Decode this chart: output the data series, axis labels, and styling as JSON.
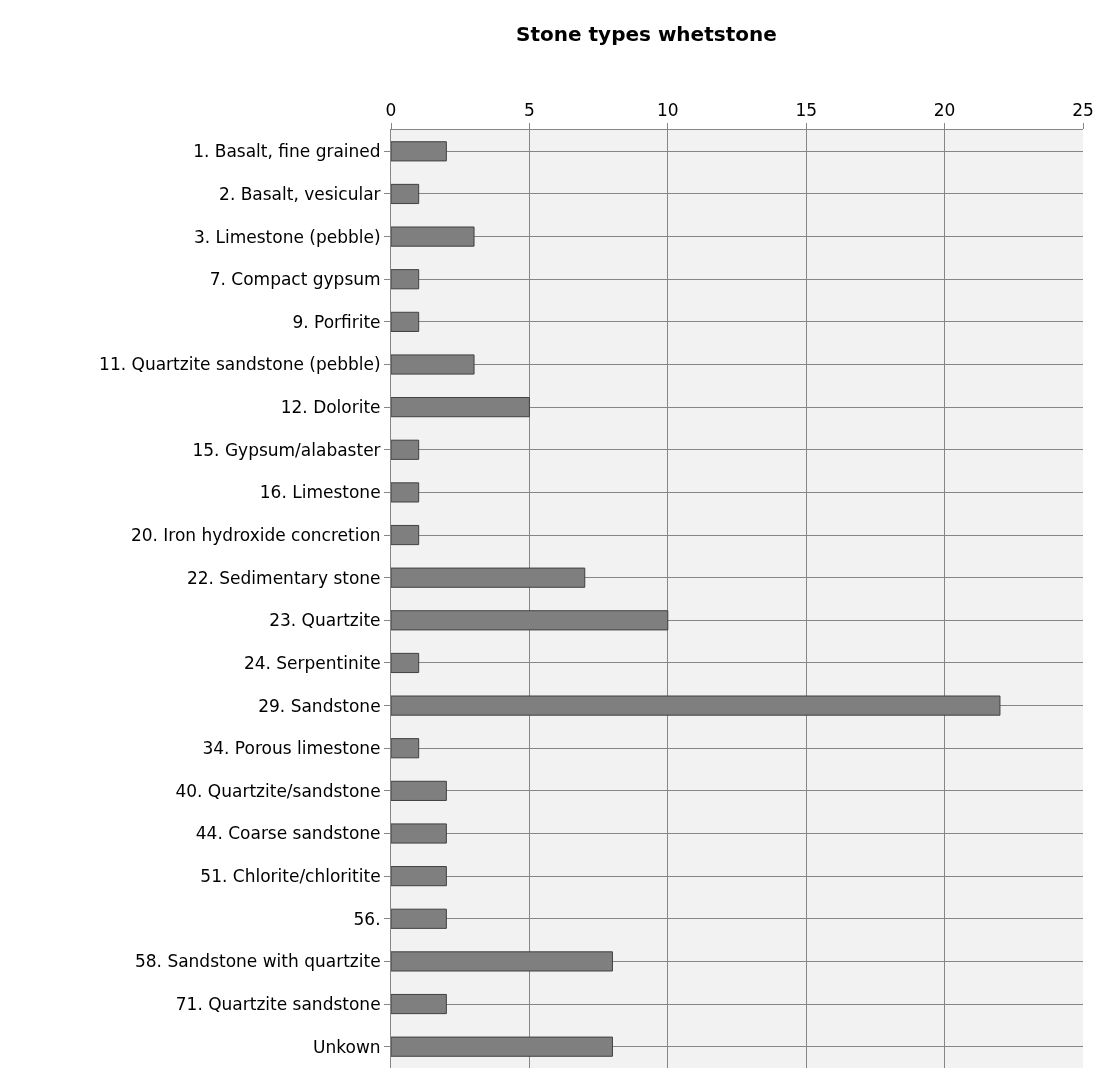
{
  "chart_data": {
    "type": "bar",
    "orientation": "horizontal",
    "title": "Stone types whetstone",
    "categories": [
      "1. Basalt, fine grained",
      "2. Basalt, vesicular",
      "3. Limestone (pebble)",
      "7. Compact gypsum",
      "9. Porfirite",
      "11. Quartzite sandstone (pebble)",
      "12. Dolorite",
      "15. Gypsum/alabaster",
      "16. Limestone",
      "20. Iron hydroxide concretion",
      "22. Sedimentary stone",
      "23. Quartzite",
      "24. Serpentinite",
      "29. Sandstone",
      "34. Porous limestone",
      "40. Quartzite/sandstone",
      "44. Coarse sandstone",
      "51. Chlorite/chloritite",
      "56.",
      "58. Sandstone with quartzite",
      "71. Quartzite sandstone",
      "Unkown"
    ],
    "values": [
      2,
      1,
      3,
      1,
      1,
      3,
      5,
      1,
      1,
      1,
      7,
      10,
      1,
      22,
      1,
      2,
      2,
      2,
      2,
      8,
      2,
      8
    ],
    "color": "#7f7f7f",
    "xlim": [
      0,
      25
    ],
    "xticks": [
      0,
      5,
      10,
      15,
      20,
      25
    ],
    "grid": true
  }
}
